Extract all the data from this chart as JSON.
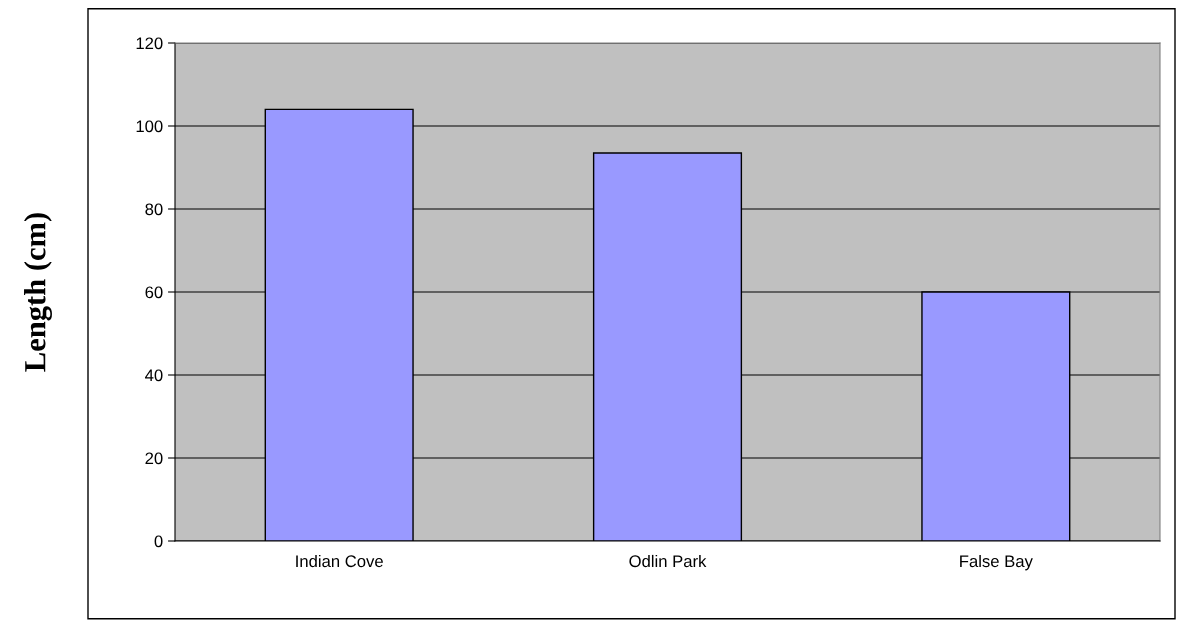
{
  "chart_data": {
    "type": "bar",
    "ylabel": "Length (cm)",
    "categories": [
      "Indian Cove",
      "Odlin Park",
      "False Bay"
    ],
    "values": [
      104,
      93.5,
      60
    ],
    "color": "#9999ff",
    "ylim": [
      0,
      120
    ],
    "yticks": [
      0,
      20,
      40,
      60,
      80,
      100,
      120
    ],
    "grid": "y",
    "legend": false
  }
}
